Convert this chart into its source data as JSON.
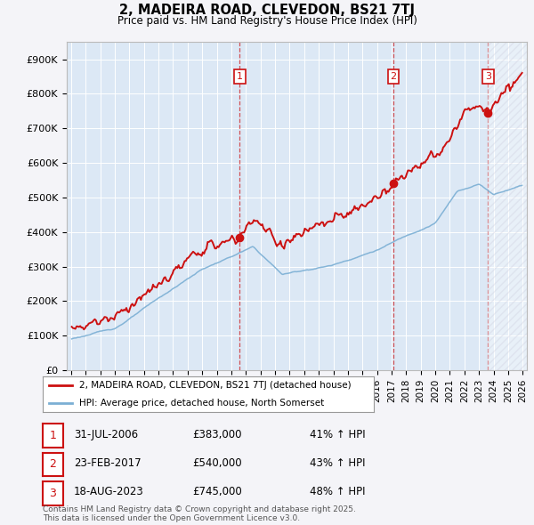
{
  "title": "2, MADEIRA ROAD, CLEVEDON, BS21 7TJ",
  "subtitle": "Price paid vs. HM Land Registry's House Price Index (HPI)",
  "bg_color": "#f4f4f8",
  "plot_bg_color": "#dce8f5",
  "plot_bg_color2": "#e8eef8",
  "grid_color": "#ffffff",
  "hpi_color": "#7bafd4",
  "price_color": "#cc1111",
  "ylim": [
    0,
    950000
  ],
  "yticks": [
    0,
    100000,
    200000,
    300000,
    400000,
    500000,
    600000,
    700000,
    800000,
    900000
  ],
  "ytick_labels": [
    "£0",
    "£100K",
    "£200K",
    "£300K",
    "£400K",
    "£500K",
    "£600K",
    "£700K",
    "£800K",
    "£900K"
  ],
  "xlim_start": 1994.7,
  "xlim_end": 2026.3,
  "xtick_years": [
    1995,
    1996,
    1997,
    1998,
    1999,
    2000,
    2001,
    2002,
    2003,
    2004,
    2005,
    2006,
    2007,
    2008,
    2009,
    2010,
    2011,
    2012,
    2013,
    2014,
    2015,
    2016,
    2017,
    2018,
    2019,
    2020,
    2021,
    2022,
    2023,
    2024,
    2025,
    2026
  ],
  "sale1_date": 2006.58,
  "sale1_price": 383000,
  "sale1_label": "1",
  "sale2_date": 2017.12,
  "sale2_price": 540000,
  "sale2_label": "2",
  "sale3_date": 2023.63,
  "sale3_price": 745000,
  "sale3_label": "3",
  "legend_line1": "2, MADEIRA ROAD, CLEVEDON, BS21 7TJ (detached house)",
  "legend_line2": "HPI: Average price, detached house, North Somerset",
  "table_data": [
    {
      "num": "1",
      "date": "31-JUL-2006",
      "price": "£383,000",
      "hpi": "41% ↑ HPI"
    },
    {
      "num": "2",
      "date": "23-FEB-2017",
      "price": "£540,000",
      "hpi": "43% ↑ HPI"
    },
    {
      "num": "3",
      "date": "18-AUG-2023",
      "price": "£745,000",
      "hpi": "48% ↑ HPI"
    }
  ],
  "footnote": "Contains HM Land Registry data © Crown copyright and database right 2025.\nThis data is licensed under the Open Government Licence v3.0."
}
